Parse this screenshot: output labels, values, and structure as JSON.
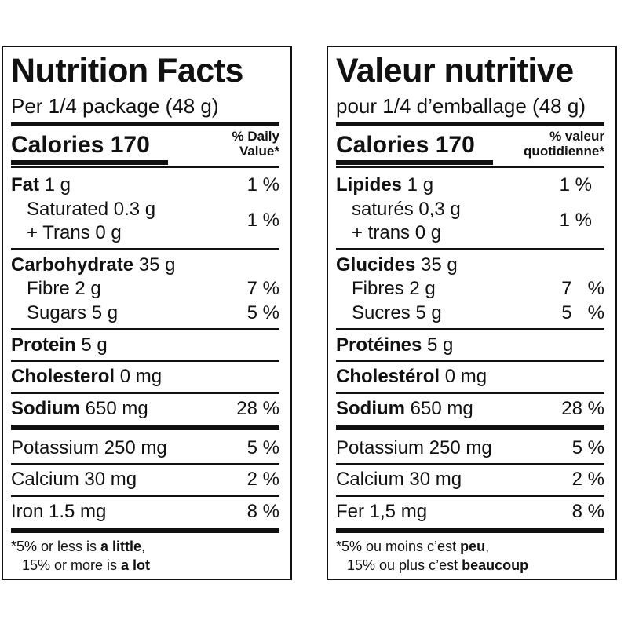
{
  "en": {
    "title": "Nutrition Facts",
    "serving": "Per 1/4 package (48 g)",
    "calories_label": "Calories",
    "calories_value": "170",
    "dv_line1": "% Daily",
    "dv_line2": "Value*",
    "fat_label": "Fat",
    "fat_amount": " 1 g",
    "fat_dv": "1 %",
    "saturated": "Saturated 0.3 g",
    "trans": "+ Trans 0 g",
    "sat_trans_dv": "1 %",
    "carb_label": "Carbohydrate",
    "carb_amount": " 35 g",
    "fibre": "Fibre 2 g",
    "fibre_dv": "7 %",
    "sugars": "Sugars 5 g",
    "sugars_dv": "5 %",
    "protein_label": "Protein",
    "protein_amount": " 5 g",
    "chol_label": "Cholesterol",
    "chol_amount": " 0 mg",
    "sodium_label": "Sodium",
    "sodium_amount": " 650 mg",
    "sodium_dv": "28 %",
    "potassium": "Potassium 250 mg",
    "potassium_dv": "5 %",
    "calcium": "Calcium 30 mg",
    "calcium_dv": "2 %",
    "iron": "Iron 1.5 mg",
    "iron_dv": "8 %",
    "foot1_pre": "*5% or less is ",
    "foot1_bold": "a little",
    "foot1_post": ",",
    "foot2_pre": "15% or more is ",
    "foot2_bold": "a lot"
  },
  "fr": {
    "title": "Valeur nutritive",
    "serving": "pour 1/4 d’emballage (48 g)",
    "calories_label": "Calories",
    "calories_value": "170",
    "dv_line1": "% valeur",
    "dv_line2": "quotidienne*",
    "fat_label": "Lipides",
    "fat_amount": " 1 g",
    "fat_dv": "1 %",
    "saturated": "saturés 0,3 g",
    "trans": "+ trans 0 g",
    "sat_trans_dv": "1 %",
    "carb_label": "Glucides",
    "carb_amount": " 35 g",
    "fibre": "Fibres 2 g",
    "fibre_dv": "7   %",
    "sugars": "Sucres 5 g",
    "sugars_dv": "5   %",
    "protein_label": "Protéines",
    "protein_amount": " 5 g",
    "chol_label": "Cholestérol",
    "chol_amount": " 0 mg",
    "sodium_label": "Sodium",
    "sodium_amount": " 650 mg",
    "sodium_dv": "28 %",
    "potassium": "Potassium 250 mg",
    "potassium_dv": "5 %",
    "calcium": "Calcium 30 mg",
    "calcium_dv": "2 %",
    "iron": "Fer 1,5 mg",
    "iron_dv": "8 %",
    "foot1_pre": "*5% ou moins c’est ",
    "foot1_bold": "peu",
    "foot1_post": ",",
    "foot2_pre": "15% ou plus c’est ",
    "foot2_bold": "beaucoup"
  }
}
